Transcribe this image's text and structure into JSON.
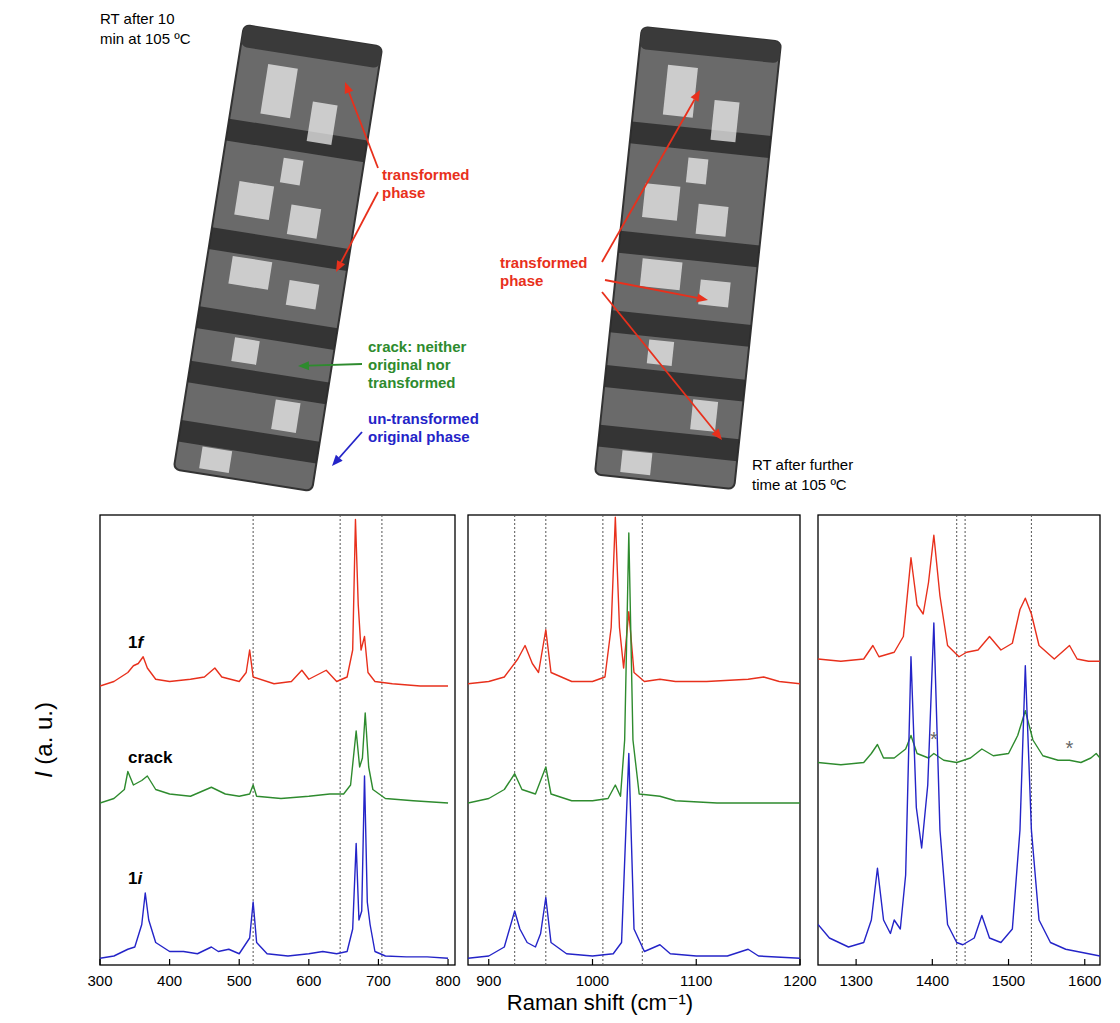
{
  "photos": [
    {
      "caption": [
        "RT after 10",
        "min at 105 ºC"
      ],
      "labels": [
        {
          "text": [
            "transformed",
            "phase"
          ],
          "color": "#e8301c"
        },
        {
          "text": [
            "crack: neither",
            "original nor",
            "transformed"
          ],
          "color": "#2e8b2e"
        },
        {
          "text": [
            "un-transformed",
            "original phase"
          ],
          "color": "#2424c8"
        }
      ]
    },
    {
      "caption": [
        "RT after further",
        "time at 105 ºC"
      ],
      "labels": [
        {
          "text": [
            "transformed",
            "phase"
          ],
          "color": "#e8301c"
        }
      ]
    }
  ],
  "chart_data": [
    {
      "type": "line",
      "ylabel": "I (a. u.)",
      "xlim": [
        300,
        810
      ],
      "xticks": [
        300,
        400,
        500,
        600,
        700,
        800
      ],
      "ylim": [
        0,
        100
      ],
      "tick_labels": "x",
      "guides": [
        520,
        645,
        705
      ],
      "series": [
        {
          "name": "1f",
          "color": "#e8301c",
          "x": [
            300,
            320,
            340,
            348,
            355,
            362,
            368,
            380,
            400,
            430,
            450,
            465,
            475,
            500,
            510,
            515,
            520,
            550,
            575,
            590,
            600,
            625,
            640,
            655,
            663,
            667,
            671,
            675,
            680,
            685,
            695,
            720,
            760,
            800
          ],
          "values": [
            62,
            63,
            65,
            66.5,
            67,
            68.5,
            66,
            63.5,
            63,
            63.5,
            64,
            66,
            64,
            63,
            65,
            70,
            64,
            62.5,
            63,
            65.5,
            63.5,
            65.5,
            63,
            64,
            70,
            99,
            80,
            70,
            73,
            65,
            63,
            62.5,
            62,
            62
          ]
        },
        {
          "name": "crack",
          "color": "#2e8b2e",
          "x": [
            300,
            320,
            335,
            340,
            348,
            360,
            368,
            380,
            400,
            430,
            460,
            480,
            500,
            515,
            520,
            525,
            560,
            600,
            630,
            650,
            660,
            668,
            673,
            677,
            681,
            686,
            692,
            710,
            750,
            800
          ],
          "values": [
            36,
            37,
            39,
            43,
            40,
            41,
            42,
            39,
            38,
            37.5,
            39.5,
            38,
            37.5,
            38,
            40,
            37.5,
            37,
            37.5,
            38,
            38,
            40,
            52,
            44,
            46,
            56,
            44,
            39,
            37,
            36.5,
            36
          ]
        },
        {
          "name": "1i",
          "color": "#2424c8",
          "x": [
            300,
            320,
            340,
            350,
            360,
            365,
            370,
            380,
            400,
            420,
            440,
            460,
            470,
            485,
            500,
            515,
            520,
            525,
            540,
            570,
            600,
            620,
            640,
            655,
            663,
            668,
            672,
            676,
            680,
            684,
            688,
            695,
            710,
            740,
            770,
            800
          ],
          "values": [
            1.5,
            2,
            3.5,
            4,
            9,
            16,
            10,
            5,
            3,
            3,
            2.5,
            4,
            3,
            3.5,
            2.5,
            6,
            14,
            5,
            2.5,
            2,
            2.5,
            3,
            2.5,
            3,
            8,
            27,
            10,
            12,
            42,
            14,
            9,
            3,
            2,
            1.8,
            1.8,
            1.5
          ]
        }
      ]
    },
    {
      "type": "line",
      "xlabel": "Raman shift (cm⁻¹)",
      "xlim": [
        880,
        1200
      ],
      "xticks": [
        900,
        1000,
        1100,
        1200
      ],
      "ylim": [
        0,
        100
      ],
      "tick_labels": "x",
      "guides": [
        925,
        955,
        1010,
        1048
      ],
      "series": [
        {
          "color": "#e8301c",
          "x": [
            880,
            900,
            915,
            928,
            935,
            942,
            948,
            955,
            960,
            980,
            1000,
            1012,
            1018,
            1022,
            1026,
            1030,
            1035,
            1040,
            1050,
            1065,
            1080,
            1110,
            1150,
            1165,
            1180,
            1200
          ],
          "values": [
            62.5,
            63,
            64,
            68,
            71,
            67,
            65,
            74.5,
            65,
            63,
            63,
            64,
            75,
            99.5,
            75,
            66,
            78.5,
            65,
            63,
            63.5,
            63,
            63,
            63.5,
            64,
            63,
            62.5
          ]
        },
        {
          "color": "#2e8b2e",
          "x": [
            880,
            900,
            915,
            925,
            932,
            945,
            955,
            960,
            980,
            1000,
            1015,
            1022,
            1027,
            1031,
            1035,
            1039,
            1045,
            1065,
            1080,
            1120,
            1160,
            1200
          ],
          "values": [
            36,
            37,
            39,
            42.5,
            39,
            38,
            44,
            38,
            36.5,
            36.5,
            37,
            40,
            37.5,
            50,
            96,
            50,
            38,
            37.5,
            36.5,
            36,
            36,
            36
          ]
        },
        {
          "color": "#2424c8",
          "x": [
            880,
            900,
            915,
            925,
            930,
            937,
            945,
            950,
            955,
            960,
            975,
            1000,
            1020,
            1028,
            1035,
            1040,
            1050,
            1065,
            1075,
            1100,
            1130,
            1150,
            1160,
            1200
          ],
          "values": [
            1.5,
            2,
            4,
            12,
            8,
            5,
            4,
            7,
            15,
            5,
            2.5,
            2,
            2.5,
            5,
            47,
            8,
            3,
            4.5,
            2.5,
            2,
            2,
            3.5,
            2,
            1.5
          ]
        }
      ]
    },
    {
      "type": "line",
      "xlim": [
        1250,
        1620
      ],
      "xticks": [
        1300,
        1400,
        1500,
        1600
      ],
      "ylim": [
        0,
        100
      ],
      "tick_labels": "x",
      "guides": [
        1432,
        1443,
        1530
      ],
      "annotations": [
        {
          "text": "*",
          "x": 1402,
          "y": 50.5
        },
        {
          "text": "*",
          "x": 1580,
          "y": 48.5
        }
      ],
      "series": [
        {
          "color": "#e8301c",
          "x": [
            1250,
            1280,
            1310,
            1322,
            1330,
            1350,
            1362,
            1372,
            1380,
            1388,
            1395,
            1402,
            1410,
            1420,
            1435,
            1445,
            1460,
            1475,
            1490,
            1505,
            1515,
            1522,
            1530,
            1540,
            1560,
            1580,
            1590,
            1605,
            1620
          ],
          "values": [
            68,
            67.5,
            68,
            71,
            68.5,
            69.5,
            73,
            90.5,
            80,
            78,
            85,
            95.5,
            82,
            71,
            68.5,
            69.5,
            70,
            73,
            70,
            71.5,
            79,
            81.5,
            78,
            71,
            68,
            71,
            68,
            67.5,
            67.5
          ]
        },
        {
          "color": "#2e8b2e",
          "x": [
            1250,
            1280,
            1310,
            1320,
            1328,
            1336,
            1350,
            1365,
            1372,
            1380,
            1395,
            1402,
            1415,
            1432,
            1450,
            1465,
            1480,
            1500,
            1512,
            1522,
            1532,
            1545,
            1565,
            1580,
            1595,
            1608,
            1615,
            1620
          ],
          "values": [
            45,
            44.5,
            45,
            47,
            49,
            46,
            46,
            48,
            51,
            47,
            46,
            47,
            45.5,
            45,
            46,
            48,
            46.5,
            47,
            51,
            56.5,
            50,
            46.5,
            45.5,
            45.5,
            45,
            46,
            47,
            46
          ]
        },
        {
          "color": "#2424c8",
          "x": [
            1250,
            1265,
            1290,
            1310,
            1320,
            1328,
            1336,
            1345,
            1350,
            1358,
            1365,
            1372,
            1379,
            1386,
            1394,
            1402,
            1410,
            1420,
            1432,
            1440,
            1455,
            1465,
            1475,
            1490,
            1505,
            1515,
            1522,
            1530,
            1540,
            1555,
            1575,
            1590,
            1605,
            1620
          ],
          "values": [
            9,
            6,
            4,
            5,
            10,
            21.5,
            10,
            7,
            10,
            8,
            20,
            68.5,
            35,
            26,
            40,
            76,
            30,
            9,
            5,
            4.5,
            6,
            11,
            6,
            5,
            8,
            30,
            66.5,
            30,
            10,
            5,
            3.5,
            3,
            2.5,
            2
          ]
        }
      ]
    }
  ]
}
